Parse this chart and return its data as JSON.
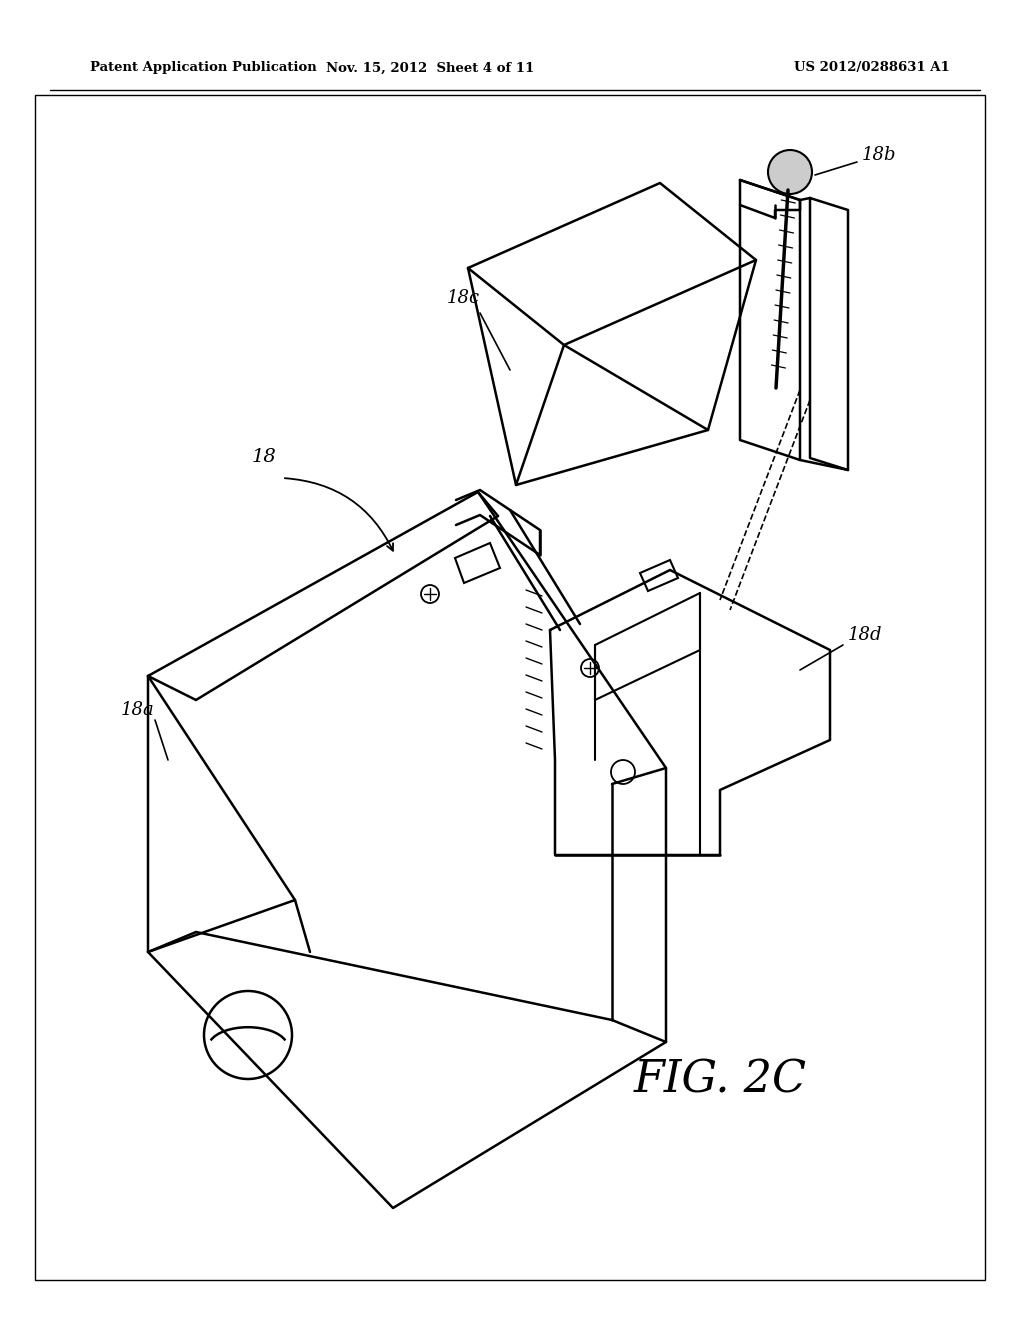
{
  "background_color": "#ffffff",
  "line_color": "#000000",
  "header_left": "Patent Application Publication",
  "header_mid": "Nov. 15, 2012  Sheet 4 of 11",
  "header_right": "US 2012/0288631 A1",
  "figure_label": "FIG. 2C"
}
